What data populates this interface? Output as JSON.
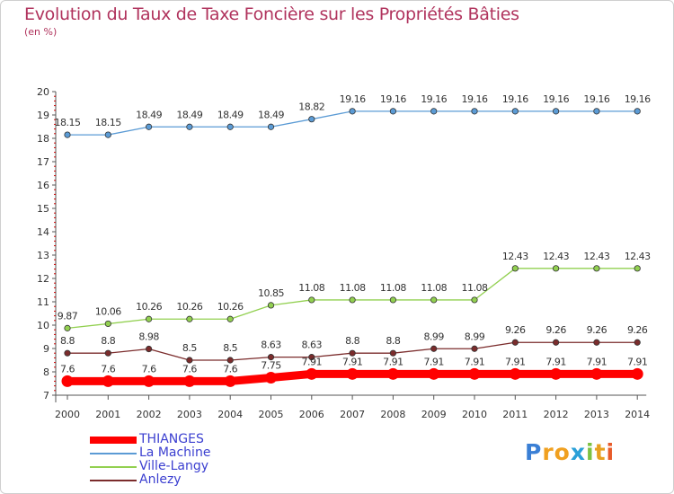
{
  "title": "Evolution du Taux de Taxe Foncière sur les Propriétés Bâties",
  "unit_label": "(en %)",
  "logo_text": "Proxiti",
  "chart_data": {
    "type": "line",
    "x": [
      "2000",
      "2001",
      "2002",
      "2003",
      "2004",
      "2005",
      "2006",
      "2007",
      "2008",
      "2009",
      "2010",
      "2011",
      "2012",
      "2013",
      "2014"
    ],
    "ylim": [
      7,
      20
    ],
    "yticks": [
      "7",
      "8",
      "9",
      "10",
      "11",
      "12",
      "13",
      "14",
      "15",
      "16",
      "17",
      "18",
      "19",
      "20"
    ],
    "grid": false,
    "legend_position": "bottom-left",
    "series": [
      {
        "name": "La Machine",
        "color": "#5b9bd5",
        "values": [
          18.15,
          18.15,
          18.49,
          18.49,
          18.49,
          18.49,
          18.82,
          19.16,
          19.16,
          19.16,
          19.16,
          19.16,
          19.16,
          19.16,
          19.16
        ],
        "labels": [
          "18.15",
          "18.15",
          "18.49",
          "18.49",
          "18.49",
          "18.49",
          "18.82",
          "19.16",
          "19.16",
          "19.16",
          "19.16",
          "19.16",
          "19.16",
          "19.16",
          "19.16"
        ]
      },
      {
        "name": "Ville-Langy",
        "color": "#92d050",
        "values": [
          9.87,
          10.06,
          10.26,
          10.26,
          10.26,
          10.85,
          11.08,
          11.08,
          11.08,
          11.08,
          11.08,
          12.43,
          12.43,
          12.43,
          12.43
        ],
        "labels": [
          "9.87",
          "10.06",
          "10.26",
          "10.26",
          "10.26",
          "10.85",
          "11.08",
          "11.08",
          "11.08",
          "11.08",
          "11.08",
          "12.43",
          "12.43",
          "12.43",
          "12.43"
        ]
      },
      {
        "name": "Anlezy",
        "color": "#7b2c2c",
        "values": [
          8.8,
          8.8,
          8.98,
          8.5,
          8.5,
          8.63,
          8.63,
          8.8,
          8.8,
          8.99,
          8.99,
          9.26,
          9.26,
          9.26,
          9.26
        ],
        "labels": [
          "8.8",
          "8.8",
          "8.98",
          "8.5",
          "8.5",
          "8.63",
          "8.63",
          "8.8",
          "8.8",
          "8.99",
          "8.99",
          "9.26",
          "9.26",
          "9.26",
          "9.26"
        ]
      },
      {
        "name": "THIANGES",
        "color": "#ff0000",
        "values": [
          7.6,
          7.6,
          7.6,
          7.6,
          7.6,
          7.75,
          7.91,
          7.91,
          7.91,
          7.91,
          7.91,
          7.91,
          7.91,
          7.91,
          7.91
        ],
        "labels": [
          "7.6",
          "7.6",
          "7.6",
          "7.6",
          "7.6",
          "7.75",
          "7.91",
          "7.91",
          "7.91",
          "7.91",
          "7.91",
          "7.91",
          "7.91",
          "7.91",
          "7.91"
        ]
      }
    ],
    "legend_order": [
      "THIANGES",
      "La Machine",
      "Ville-Langy",
      "Anlezy"
    ]
  }
}
